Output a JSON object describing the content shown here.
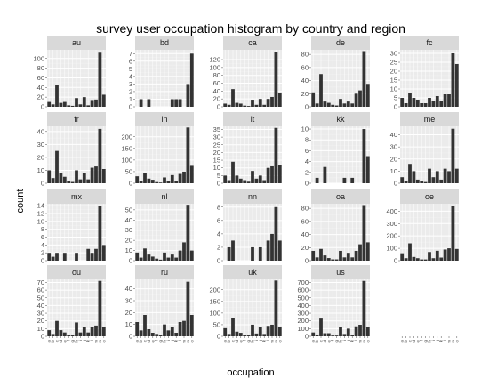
{
  "chart_data": {
    "type": "bar",
    "title": "survey user occupation histogram by country and region",
    "xlabel": "occupation",
    "ylabel": "count",
    "facet_layout": {
      "columns": 5,
      "rows": 4
    },
    "bar_color": "#333333",
    "panel_background": "#ebebeb",
    "strip_background": "#d9d9d9",
    "grid": true,
    "x_tick_labels": [
      "a",
      "b",
      "c",
      "d",
      "e",
      "f",
      "g",
      "h",
      "i",
      "j",
      "k",
      "l",
      "m",
      "n",
      "o"
    ],
    "facets": [
      {
        "name": "au",
        "yticks": [
          0,
          20,
          40,
          60,
          80,
          100
        ],
        "ylim": [
          0,
          118
        ],
        "values": [
          10,
          5,
          45,
          8,
          10,
          3,
          2,
          18,
          5,
          20,
          3,
          14,
          15,
          112,
          25
        ]
      },
      {
        "name": "bd",
        "yticks": [
          0,
          1,
          2,
          3,
          4,
          5,
          6,
          7
        ],
        "ylim": [
          0,
          7.5
        ],
        "values": [
          0,
          1,
          0,
          1,
          0,
          0,
          0,
          0,
          0,
          1,
          1,
          1,
          0,
          3,
          7
        ]
      },
      {
        "name": "ca",
        "yticks": [
          0,
          20,
          40,
          60,
          80,
          100,
          120
        ],
        "ylim": [
          0,
          145
        ],
        "values": [
          8,
          5,
          45,
          10,
          8,
          3,
          2,
          18,
          5,
          20,
          5,
          20,
          25,
          140,
          35
        ]
      },
      {
        "name": "de",
        "yticks": [
          0,
          20,
          40,
          60,
          80
        ],
        "ylim": [
          0,
          87
        ],
        "values": [
          22,
          5,
          50,
          8,
          6,
          3,
          2,
          12,
          5,
          8,
          5,
          20,
          25,
          85,
          35
        ]
      },
      {
        "name": "fc",
        "yticks": [
          0,
          5,
          10,
          15,
          20,
          25,
          30
        ],
        "ylim": [
          0,
          32
        ],
        "values": [
          5,
          2,
          8,
          5,
          4,
          2,
          2,
          5,
          3,
          6,
          3,
          7,
          7,
          30,
          24
        ]
      },
      {
        "name": "fr",
        "yticks": [
          0,
          10,
          20,
          30,
          40
        ],
        "ylim": [
          0,
          44
        ],
        "values": [
          10,
          4,
          25,
          8,
          5,
          2,
          1,
          10,
          3,
          8,
          3,
          12,
          13,
          42,
          11
        ]
      },
      {
        "name": "in",
        "yticks": [
          0,
          50,
          100,
          150,
          200
        ],
        "ylim": [
          0,
          245
        ],
        "values": [
          30,
          10,
          45,
          20,
          15,
          5,
          3,
          25,
          10,
          35,
          10,
          40,
          50,
          240,
          75
        ]
      },
      {
        "name": "it",
        "yticks": [
          0,
          5,
          10,
          15,
          20,
          25,
          30,
          35
        ],
        "ylim": [
          0,
          37
        ],
        "values": [
          5,
          2,
          14,
          5,
          3,
          2,
          1,
          8,
          3,
          5,
          2,
          10,
          11,
          36,
          12
        ]
      },
      {
        "name": "kk",
        "yticks": [
          0,
          2,
          4,
          6,
          8,
          10
        ],
        "ylim": [
          0,
          10.5
        ],
        "values": [
          0,
          1,
          0,
          3,
          0,
          0,
          0,
          0,
          1,
          0,
          1,
          0,
          0,
          10,
          5
        ]
      },
      {
        "name": "me",
        "yticks": [
          0,
          10,
          20,
          30,
          40
        ],
        "ylim": [
          0,
          47
        ],
        "values": [
          5,
          2,
          16,
          10,
          3,
          2,
          1,
          12,
          5,
          10,
          3,
          12,
          10,
          45,
          12
        ]
      },
      {
        "name": "mx",
        "yticks": [
          0,
          2,
          4,
          6,
          8,
          10,
          12,
          14
        ],
        "ylim": [
          0,
          14.5
        ],
        "values": [
          2,
          1,
          2,
          0,
          2,
          0,
          0,
          2,
          0,
          0,
          3,
          2,
          3,
          14,
          4
        ]
      },
      {
        "name": "nl",
        "yticks": [
          0,
          10,
          20,
          30,
          40,
          50
        ],
        "ylim": [
          0,
          56
        ],
        "values": [
          8,
          3,
          12,
          6,
          4,
          2,
          1,
          8,
          3,
          6,
          3,
          10,
          18,
          55,
          10
        ]
      },
      {
        "name": "nn",
        "yticks": [
          0,
          2,
          4,
          6,
          8
        ],
        "ylim": [
          0,
          8.5
        ],
        "values": [
          0,
          2,
          3,
          0,
          0,
          0,
          0,
          2,
          0,
          2,
          0,
          3,
          4,
          8,
          3
        ]
      },
      {
        "name": "oa",
        "yticks": [
          0,
          20,
          40,
          60,
          80
        ],
        "ylim": [
          0,
          87
        ],
        "values": [
          15,
          5,
          18,
          8,
          4,
          2,
          2,
          15,
          5,
          12,
          5,
          15,
          25,
          85,
          28
        ]
      },
      {
        "name": "oe",
        "yticks": [
          0,
          100,
          200,
          300,
          400
        ],
        "ylim": [
          0,
          460
        ],
        "values": [
          60,
          20,
          140,
          30,
          20,
          10,
          10,
          70,
          20,
          80,
          25,
          90,
          100,
          440,
          95
        ]
      },
      {
        "name": "ou",
        "yticks": [
          0,
          10,
          20,
          30,
          40,
          50,
          60,
          70
        ],
        "ylim": [
          0,
          74
        ],
        "values": [
          8,
          3,
          20,
          8,
          5,
          2,
          2,
          18,
          5,
          12,
          5,
          12,
          14,
          72,
          12
        ]
      },
      {
        "name": "ru",
        "yticks": [
          0,
          10,
          20,
          30,
          40
        ],
        "ylim": [
          0,
          48
        ],
        "values": [
          12,
          5,
          18,
          6,
          3,
          2,
          1,
          10,
          5,
          8,
          3,
          12,
          13,
          46,
          18
        ]
      },
      {
        "name": "uk",
        "yticks": [
          0,
          50,
          100,
          150,
          200
        ],
        "ylim": [
          0,
          245
        ],
        "values": [
          35,
          10,
          80,
          20,
          15,
          5,
          5,
          50,
          12,
          40,
          10,
          45,
          50,
          240,
          40
        ]
      },
      {
        "name": "us",
        "yticks": [
          0,
          100,
          200,
          300,
          400,
          500,
          600,
          700
        ],
        "ylim": [
          0,
          740
        ],
        "values": [
          50,
          20,
          230,
          40,
          40,
          10,
          10,
          120,
          30,
          100,
          20,
          130,
          150,
          720,
          120
        ]
      }
    ]
  }
}
